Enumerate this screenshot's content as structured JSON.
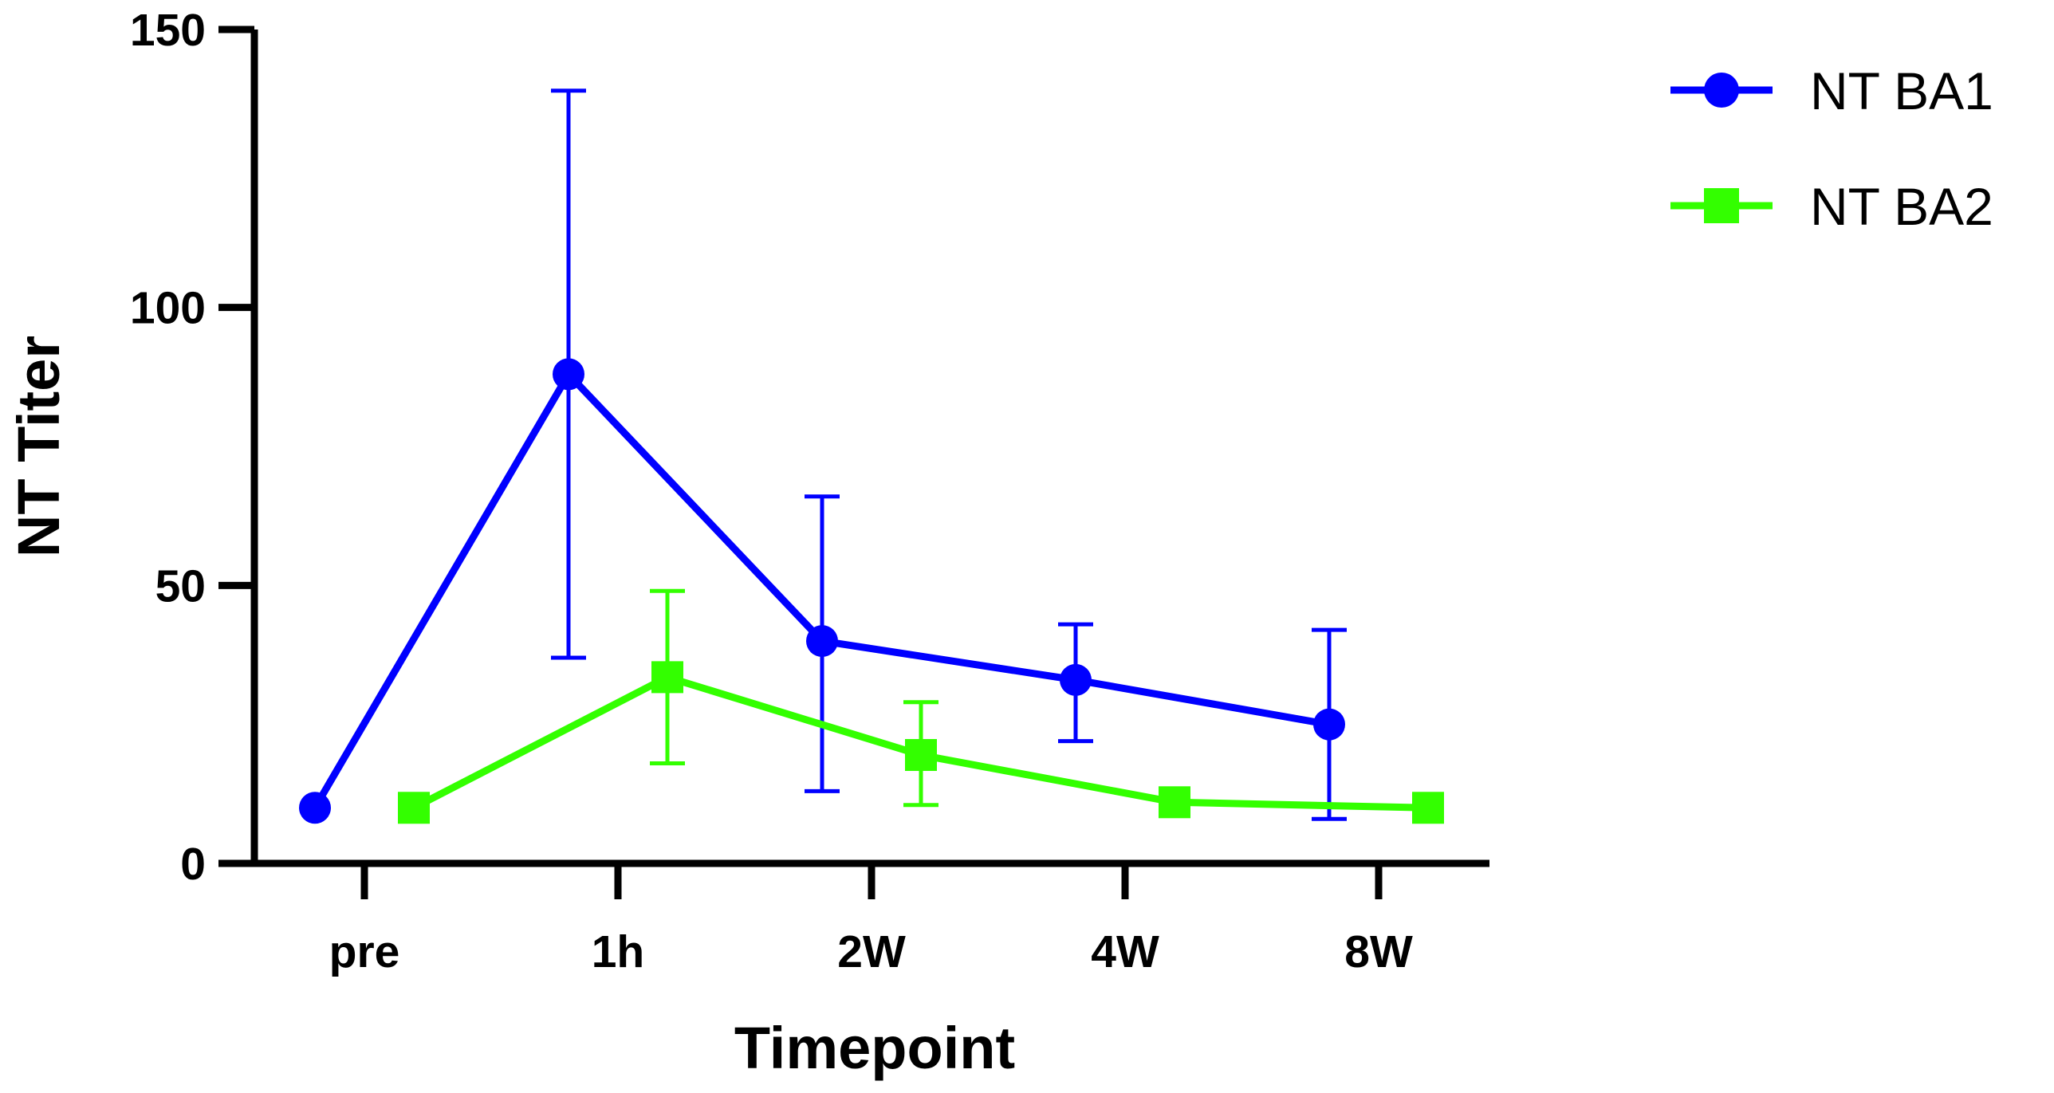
{
  "chart_data": {
    "type": "line",
    "title": "",
    "xlabel": "Timepoint",
    "ylabel": "NT Titer",
    "categories": [
      "pre",
      "1h",
      "2W",
      "4W",
      "8W"
    ],
    "ylim": [
      0,
      150
    ],
    "yticks": [
      0,
      50,
      100,
      150
    ],
    "grid": false,
    "legend_position": "top-right",
    "series": [
      {
        "name": "NT BA1",
        "color": "#0000ff",
        "marker": "circle",
        "offset": "left",
        "values": [
          10,
          88,
          40,
          33,
          25
        ],
        "error_low": [
          null,
          37,
          13,
          22,
          8
        ],
        "error_high": [
          null,
          139,
          66,
          43,
          42
        ]
      },
      {
        "name": "NT BA2",
        "color": "#33ff00",
        "marker": "square",
        "offset": "right",
        "values": [
          10,
          33.5,
          19.5,
          11,
          10
        ],
        "error_low": [
          null,
          18,
          10.5,
          null,
          null
        ],
        "error_high": [
          null,
          49,
          29,
          null,
          null
        ]
      }
    ]
  }
}
